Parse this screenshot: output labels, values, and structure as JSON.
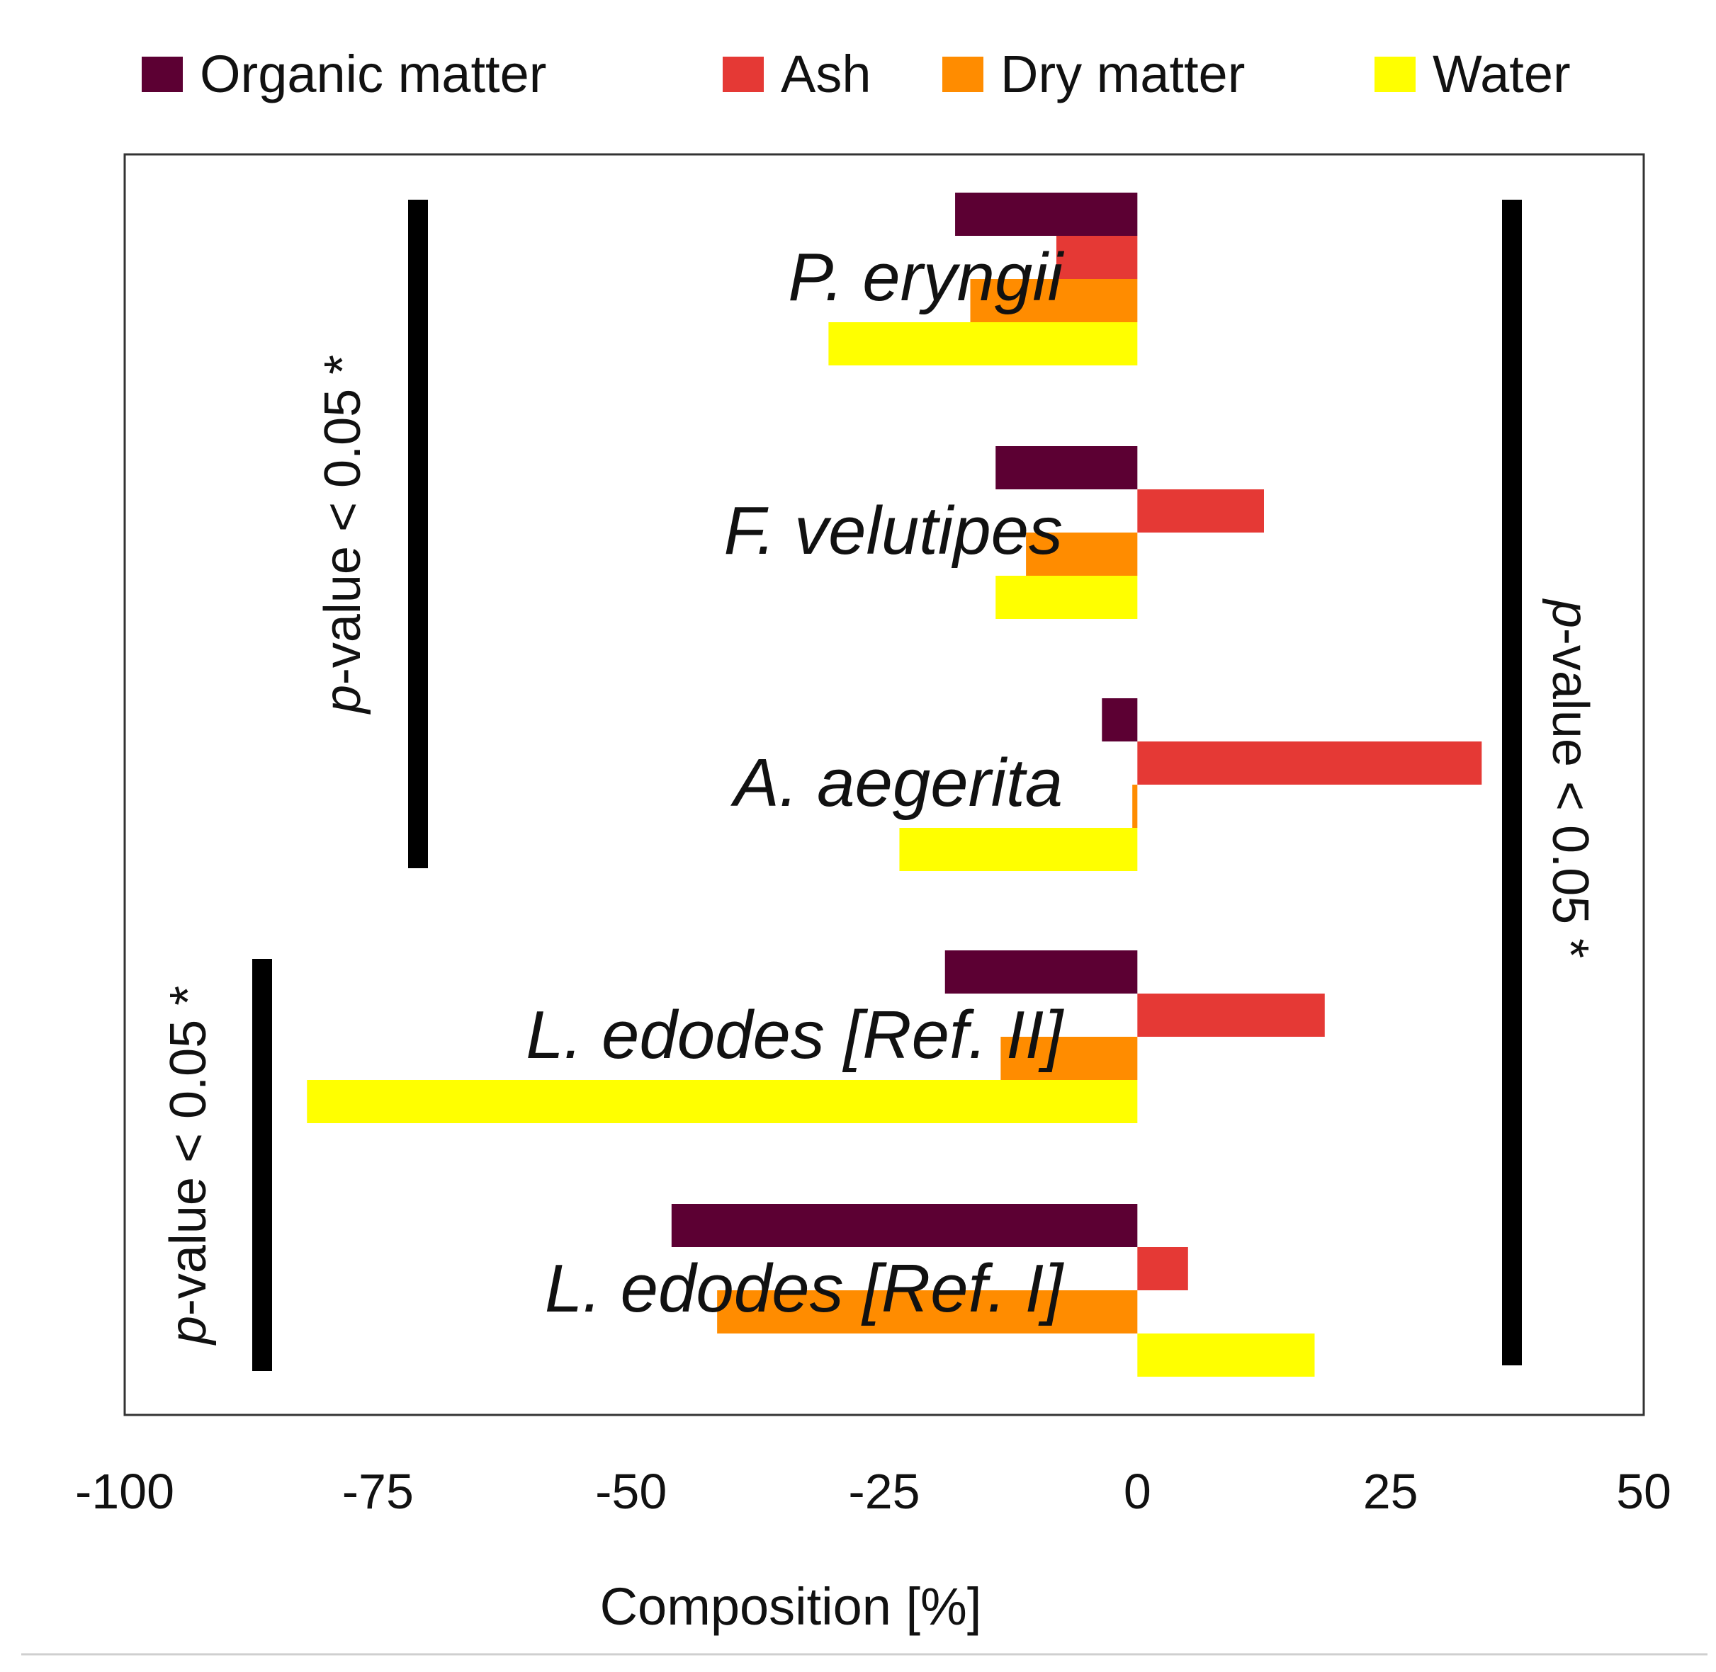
{
  "chart_data": {
    "type": "bar",
    "orientation": "horizontal",
    "categories": [
      "P. eryngii",
      "F. velutipes",
      "A.  aegerita",
      "L. edodes [Ref. II]",
      "L. edodes [Ref. I]"
    ],
    "series": [
      {
        "name": "Organic matter",
        "color": "#5c0033",
        "values": [
          -18,
          -14,
          -3.5,
          -19,
          -46
        ]
      },
      {
        "name": "Ash",
        "color": "#e53935",
        "values": [
          -8,
          12.5,
          34,
          18.5,
          5
        ]
      },
      {
        "name": "Dry matter",
        "color": "#ff8c00",
        "values": [
          -16.5,
          -11,
          -0.5,
          -13.5,
          -41.5
        ]
      },
      {
        "name": "Water",
        "color": "#ffff00",
        "values": [
          -30.5,
          -14,
          -23.5,
          -82,
          17.5
        ]
      }
    ],
    "xlim": [
      -100,
      50
    ],
    "xticks": [
      "-100",
      "-75",
      "-50",
      "-25",
      "0",
      "25",
      "50"
    ],
    "xlabel": "Composition [%]",
    "ylabel": "",
    "title": "",
    "legend_position": "top",
    "grid": false,
    "annotations": {
      "sig_top_left": {
        "text": "-value < 0.05 *",
        "italic_prefix": "p"
      },
      "sig_bottom_left": {
        "text": "-value < 0.05 *",
        "italic_prefix": "p"
      },
      "sig_right": {
        "text": "-value < 0.05 *",
        "italic_prefix": "p"
      }
    }
  }
}
